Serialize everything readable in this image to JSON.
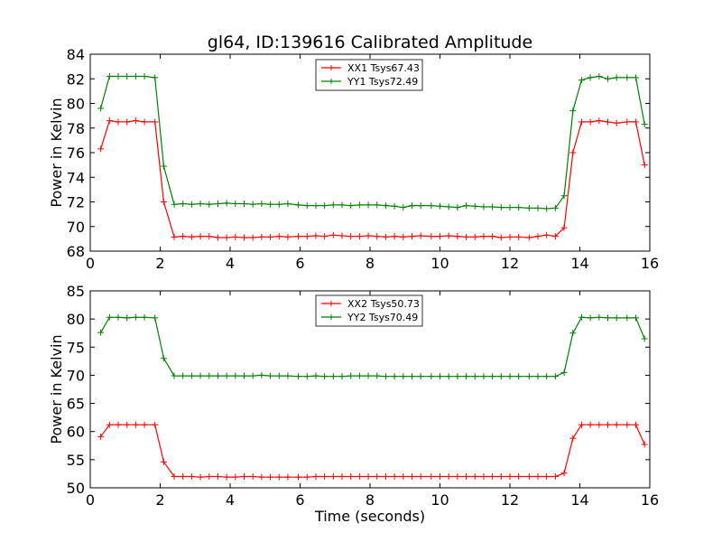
{
  "title": "gl64, ID:139616 Calibrated Amplitude",
  "chart_data": [
    {
      "type": "line",
      "title": "gl64, ID:139616 Calibrated Amplitude",
      "xlabel": "",
      "ylabel": "Power in Kelvin",
      "xlim": [
        0,
        16
      ],
      "ylim": [
        68,
        84
      ],
      "xticks": [
        0,
        2,
        4,
        6,
        8,
        10,
        12,
        14,
        16
      ],
      "yticks": [
        68,
        70,
        72,
        74,
        76,
        78,
        80,
        82,
        84
      ],
      "grid": false,
      "legend_position": "top-center",
      "x": [
        0.3,
        0.55,
        0.8,
        1.05,
        1.3,
        1.55,
        1.85,
        2.1,
        2.4,
        2.65,
        2.9,
        3.15,
        3.4,
        3.65,
        3.9,
        4.15,
        4.4,
        4.65,
        4.9,
        5.15,
        5.4,
        5.65,
        5.95,
        6.2,
        6.45,
        6.7,
        6.95,
        7.2,
        7.45,
        7.7,
        7.95,
        8.2,
        8.45,
        8.7,
        8.95,
        9.2,
        9.45,
        9.75,
        10.0,
        10.25,
        10.5,
        10.75,
        11.0,
        11.25,
        11.5,
        11.75,
        12.0,
        12.25,
        12.55,
        12.8,
        13.05,
        13.3,
        13.55,
        13.8,
        14.05,
        14.3,
        14.55,
        14.8,
        15.05,
        15.35,
        15.6,
        15.85
      ],
      "series": [
        {
          "name": "XX1 Tsys67.43",
          "color": "#ff0000",
          "values": [
            76.3,
            78.6,
            78.5,
            78.5,
            78.6,
            78.5,
            78.5,
            72.0,
            69.15,
            69.2,
            69.15,
            69.2,
            69.2,
            69.1,
            69.1,
            69.15,
            69.1,
            69.1,
            69.15,
            69.15,
            69.2,
            69.15,
            69.2,
            69.2,
            69.25,
            69.2,
            69.3,
            69.25,
            69.2,
            69.2,
            69.25,
            69.2,
            69.15,
            69.2,
            69.15,
            69.2,
            69.25,
            69.2,
            69.2,
            69.25,
            69.2,
            69.15,
            69.15,
            69.2,
            69.2,
            69.1,
            69.15,
            69.15,
            69.1,
            69.2,
            69.3,
            69.2,
            69.9,
            76.0,
            78.5,
            78.5,
            78.6,
            78.5,
            78.4,
            78.5,
            78.5,
            75.0
          ]
        },
        {
          "name": "YY1 Tsys72.49",
          "color": "#008000",
          "values": [
            79.6,
            82.2,
            82.2,
            82.2,
            82.2,
            82.2,
            82.1,
            74.9,
            71.8,
            71.85,
            71.8,
            71.85,
            71.8,
            71.85,
            71.9,
            71.85,
            71.85,
            71.8,
            71.85,
            71.8,
            71.8,
            71.85,
            71.75,
            71.7,
            71.7,
            71.7,
            71.75,
            71.75,
            71.7,
            71.75,
            71.75,
            71.75,
            71.7,
            71.65,
            71.55,
            71.7,
            71.7,
            71.7,
            71.65,
            71.6,
            71.55,
            71.7,
            71.65,
            71.6,
            71.6,
            71.55,
            71.55,
            71.55,
            71.5,
            71.5,
            71.45,
            71.5,
            72.5,
            79.4,
            81.9,
            82.1,
            82.2,
            82.0,
            82.1,
            82.1,
            82.1,
            78.3
          ]
        }
      ]
    },
    {
      "type": "line",
      "title": "",
      "xlabel": "Time (seconds)",
      "ylabel": "Power in Kelvin",
      "xlim": [
        0,
        16
      ],
      "ylim": [
        50,
        85
      ],
      "xticks": [
        0,
        2,
        4,
        6,
        8,
        10,
        12,
        14,
        16
      ],
      "yticks": [
        50,
        55,
        60,
        65,
        70,
        75,
        80,
        85
      ],
      "grid": false,
      "legend_position": "top-center",
      "x": [
        0.3,
        0.55,
        0.8,
        1.05,
        1.3,
        1.55,
        1.85,
        2.1,
        2.4,
        2.65,
        2.9,
        3.15,
        3.4,
        3.65,
        3.9,
        4.15,
        4.4,
        4.65,
        4.9,
        5.15,
        5.4,
        5.65,
        5.95,
        6.2,
        6.45,
        6.7,
        6.95,
        7.2,
        7.45,
        7.7,
        7.95,
        8.2,
        8.45,
        8.7,
        8.95,
        9.2,
        9.45,
        9.75,
        10.0,
        10.25,
        10.5,
        10.75,
        11.0,
        11.25,
        11.5,
        11.75,
        12.0,
        12.25,
        12.55,
        12.8,
        13.05,
        13.3,
        13.55,
        13.8,
        14.05,
        14.3,
        14.55,
        14.8,
        15.05,
        15.35,
        15.6,
        15.85
      ],
      "series": [
        {
          "name": "XX2 Tsys50.73",
          "color": "#ff0000",
          "values": [
            59.1,
            61.2,
            61.2,
            61.2,
            61.2,
            61.2,
            61.2,
            54.6,
            52.0,
            52.0,
            52.0,
            51.9,
            52.0,
            52.0,
            51.9,
            51.9,
            52.0,
            52.0,
            51.9,
            51.9,
            51.9,
            51.9,
            51.9,
            51.9,
            52.0,
            52.0,
            52.0,
            52.0,
            52.0,
            52.0,
            52.0,
            52.0,
            52.0,
            52.0,
            52.0,
            52.0,
            52.0,
            52.0,
            52.0,
            52.0,
            52.0,
            52.0,
            52.0,
            52.0,
            52.0,
            52.0,
            52.0,
            52.0,
            52.0,
            52.0,
            52.0,
            52.0,
            52.6,
            58.8,
            61.2,
            61.2,
            61.2,
            61.2,
            61.2,
            61.2,
            61.2,
            57.7
          ]
        },
        {
          "name": "YY2 Tsys70.49",
          "color": "#008000",
          "values": [
            77.6,
            80.3,
            80.3,
            80.2,
            80.3,
            80.3,
            80.2,
            73.0,
            69.9,
            69.9,
            69.9,
            69.9,
            69.9,
            69.9,
            69.9,
            69.9,
            69.9,
            69.9,
            70.0,
            69.9,
            69.9,
            69.9,
            69.8,
            69.8,
            69.9,
            69.8,
            69.8,
            69.8,
            69.9,
            69.9,
            69.9,
            69.9,
            69.8,
            69.8,
            69.8,
            69.8,
            69.8,
            69.8,
            69.8,
            69.8,
            69.8,
            69.8,
            69.8,
            69.8,
            69.8,
            69.8,
            69.8,
            69.8,
            69.8,
            69.8,
            69.8,
            69.8,
            70.5,
            77.5,
            80.3,
            80.2,
            80.3,
            80.2,
            80.2,
            80.2,
            80.2,
            76.5
          ]
        }
      ]
    }
  ]
}
